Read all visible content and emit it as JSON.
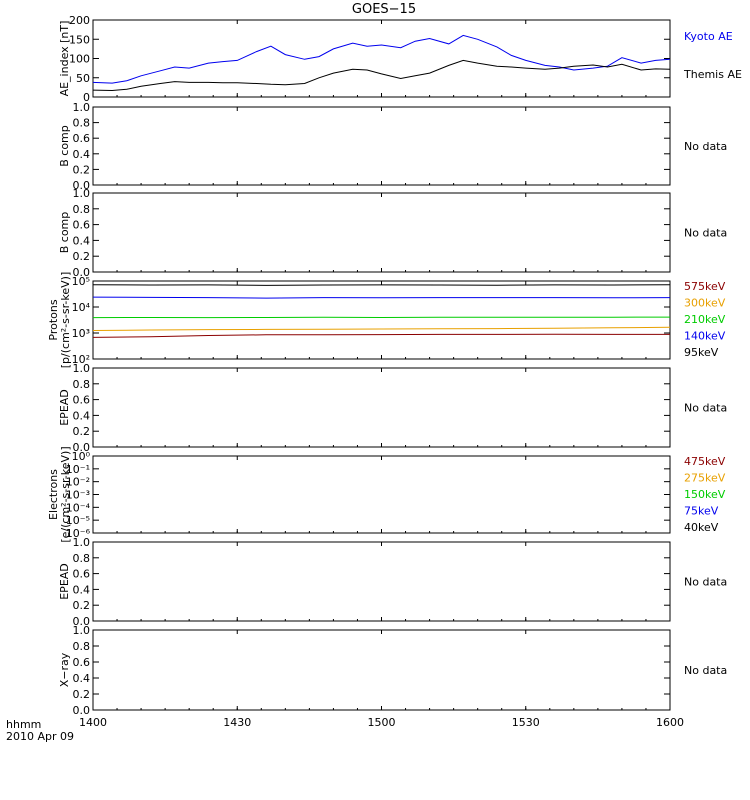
{
  "title": "GOES−15",
  "footer": {
    "line1": "hhmm",
    "line2": "2010 Apr 09"
  },
  "x_axis": {
    "ticks": [
      "1400",
      "1430",
      "1500",
      "1530",
      "1600"
    ],
    "range": [
      0,
      120
    ]
  },
  "chart_data": [
    {
      "type": "line",
      "panel": "AE index",
      "ylabel": "AE_index [nT]",
      "ylim": [
        0,
        200
      ],
      "yticks": [
        "0",
        "50",
        "100",
        "150",
        "200"
      ],
      "x": [
        0,
        4,
        7,
        10,
        14,
        17,
        20,
        24,
        27,
        30,
        34,
        37,
        40,
        44,
        47,
        50,
        54,
        57,
        60,
        64,
        67,
        70,
        74,
        77,
        80,
        84,
        87,
        90,
        94,
        97,
        100,
        104,
        107,
        110,
        114,
        117,
        120
      ],
      "series": [
        {
          "name": "Kyoto AE",
          "color": "#0000ee",
          "values": [
            38,
            36,
            42,
            55,
            68,
            78,
            75,
            88,
            92,
            95,
            118,
            132,
            110,
            98,
            105,
            125,
            140,
            132,
            135,
            128,
            145,
            152,
            138,
            160,
            150,
            130,
            108,
            95,
            82,
            78,
            70,
            75,
            80,
            102,
            88,
            95,
            98
          ]
        },
        {
          "name": "Themis AE",
          "color": "#000000",
          "values": [
            18,
            17,
            20,
            28,
            35,
            40,
            38,
            38,
            37,
            37,
            35,
            33,
            32,
            35,
            50,
            62,
            72,
            70,
            60,
            48,
            55,
            62,
            82,
            95,
            88,
            80,
            78,
            75,
            72,
            75,
            80,
            83,
            78,
            85,
            70,
            73,
            72
          ]
        }
      ]
    },
    {
      "type": "line",
      "panel": "B comp 1",
      "ylabel": "B comp",
      "yticks": [
        "0.0",
        "0.2",
        "0.4",
        "0.6",
        "0.8",
        "1.0"
      ],
      "status": "No data"
    },
    {
      "type": "line",
      "panel": "B comp 2",
      "ylabel": "B comp",
      "yticks": [
        "0.0",
        "0.2",
        "0.4",
        "0.6",
        "0.8",
        "1.0"
      ],
      "status": "No data"
    },
    {
      "type": "line",
      "panel": "Protons",
      "scale": "log",
      "ylabel1": "Protons",
      "ylabel2": "[p/(cm²-s-sr-keV)]",
      "ylim": [
        100,
        100000
      ],
      "yticks": [
        "10²",
        "10³",
        "10⁴",
        "10⁵"
      ],
      "x": [
        0,
        12,
        24,
        36,
        48,
        60,
        72,
        84,
        96,
        108,
        120
      ],
      "series": [
        {
          "name": "575keV",
          "color": "#8b0000",
          "values": [
            680,
            720,
            800,
            850,
            860,
            870,
            880,
            880,
            890,
            880,
            880
          ]
        },
        {
          "name": "300keV",
          "color": "#e8a000",
          "values": [
            1250,
            1300,
            1350,
            1380,
            1400,
            1420,
            1450,
            1480,
            1520,
            1580,
            1650
          ]
        },
        {
          "name": "210keV",
          "color": "#00cc00",
          "values": [
            3900,
            3950,
            3900,
            3950,
            4000,
            3950,
            4000,
            4050,
            4000,
            4050,
            4100
          ]
        },
        {
          "name": "140keV",
          "color": "#0000ee",
          "values": [
            24000,
            23500,
            23000,
            22000,
            23000,
            22500,
            23000,
            23000,
            23000,
            22500,
            23000
          ]
        },
        {
          "name": "95keV",
          "color": "#000000",
          "values": [
            72000,
            70000,
            71000,
            68000,
            70000,
            71000,
            70000,
            69000,
            71000,
            70000,
            72000
          ]
        }
      ]
    },
    {
      "type": "line",
      "panel": "EPEAD 1",
      "ylabel": "EPEAD",
      "yticks": [
        "0.0",
        "0.2",
        "0.4",
        "0.6",
        "0.8",
        "1.0"
      ],
      "status": "No data"
    },
    {
      "type": "line",
      "panel": "Electrons",
      "scale": "log",
      "ylabel1": "Electrons",
      "ylabel2": "[e/(cm²-s-sr-keV)]",
      "yticks": [
        "10⁻⁶",
        "10⁻⁵",
        "10⁻⁴",
        "10⁻³",
        "10⁻²",
        "10⁻¹",
        "10⁰"
      ],
      "series": [
        {
          "name": "475keV",
          "color": "#8b0000"
        },
        {
          "name": "275keV",
          "color": "#e8a000"
        },
        {
          "name": "150keV",
          "color": "#00cc00"
        },
        {
          "name": "75keV",
          "color": "#0000ee"
        },
        {
          "name": "40keV",
          "color": "#000000"
        }
      ]
    },
    {
      "type": "line",
      "panel": "EPEAD 2",
      "ylabel": "EPEAD",
      "yticks": [
        "0.0",
        "0.2",
        "0.4",
        "0.6",
        "0.8",
        "1.0"
      ],
      "status": "No data"
    },
    {
      "type": "line",
      "panel": "X-ray",
      "ylabel": "X−ray",
      "yticks": [
        "0.0",
        "0.2",
        "0.4",
        "0.6",
        "0.8",
        "1.0"
      ],
      "status": "No data"
    }
  ]
}
